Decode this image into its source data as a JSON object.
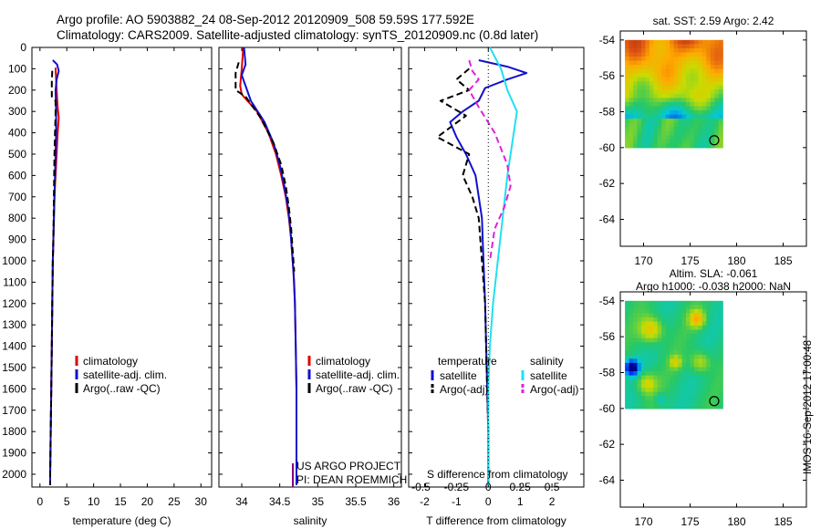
{
  "header": {
    "title_line1": "Argo profile: AO 5903882_24 08-Sep-2012 20120909_508 59.59S 177.592E",
    "title_line2": "Climatology: CARS2009. Satellite-adjusted climatology: synTS_20120909.nc (0.8d later)"
  },
  "colors": {
    "climatology": "#e00000",
    "satellite": "#1010d0",
    "argo": "#000000",
    "sal_satellite": "#20e0f0",
    "sal_argo": "#e020e0"
  },
  "depth_axis": {
    "ticks": [
      0,
      100,
      200,
      300,
      400,
      500,
      600,
      700,
      800,
      900,
      1000,
      1100,
      1200,
      1300,
      1400,
      1500,
      1600,
      1700,
      1800,
      1900,
      2000
    ],
    "range": [
      0,
      2060
    ]
  },
  "chart_data": [
    {
      "id": "temperature",
      "type": "line",
      "xlabel": "temperature (deg C)",
      "xlim": [
        -1.5,
        32
      ],
      "xticks": [
        0,
        5,
        10,
        15,
        20,
        25,
        30
      ],
      "legend": [
        "climatology",
        "satellite-adj. clim.",
        "Argo(..raw -QC)"
      ],
      "series": [
        {
          "name": "climatology",
          "color_key": "climatology",
          "dash": false,
          "points": [
            [
              2.9,
              95
            ],
            [
              3.0,
              150
            ],
            [
              3.1,
              200
            ],
            [
              3.3,
              280
            ],
            [
              3.5,
              330
            ],
            [
              3.3,
              400
            ],
            [
              3.1,
              500
            ],
            [
              2.9,
              600
            ],
            [
              2.7,
              700
            ],
            [
              2.6,
              800
            ],
            [
              2.5,
              900
            ],
            [
              2.4,
              1000
            ],
            [
              2.3,
              1200
            ],
            [
              2.2,
              1400
            ],
            [
              2.1,
              1600
            ],
            [
              2.0,
              1800
            ],
            [
              1.9,
              2000
            ],
            [
              1.9,
              2050
            ]
          ]
        },
        {
          "name": "satellite-adj. clim.",
          "color_key": "satellite",
          "dash": false,
          "points": [
            [
              2.4,
              60
            ],
            [
              3.2,
              80
            ],
            [
              3.5,
              110
            ],
            [
              3.1,
              150
            ],
            [
              2.9,
              200
            ],
            [
              3.0,
              300
            ],
            [
              3.0,
              400
            ],
            [
              2.9,
              500
            ],
            [
              2.8,
              600
            ],
            [
              2.7,
              700
            ],
            [
              2.6,
              800
            ],
            [
              2.5,
              900
            ],
            [
              2.4,
              1000
            ],
            [
              2.3,
              1200
            ],
            [
              2.2,
              1400
            ],
            [
              2.1,
              1600
            ],
            [
              2.0,
              1800
            ],
            [
              1.9,
              2000
            ],
            [
              1.9,
              2050
            ]
          ]
        },
        {
          "name": "Argo(..raw -QC)",
          "color_key": "argo",
          "dash": true,
          "points": [
            [
              2.3,
              110
            ],
            [
              2.2,
              160
            ],
            [
              2.2,
              230
            ],
            [
              2.9,
              250
            ],
            [
              2.9,
              320
            ],
            [
              2.8,
              400
            ],
            [
              2.7,
              500
            ],
            [
              2.6,
              700
            ],
            [
              2.5,
              900
            ],
            [
              2.4,
              1000
            ],
            [
              2.3,
              1200
            ],
            [
              2.2,
              1400
            ],
            [
              2.1,
              1600
            ],
            [
              2.0,
              1800
            ],
            [
              1.9,
              2000
            ],
            [
              1.9,
              2050
            ]
          ]
        }
      ]
    },
    {
      "id": "salinity",
      "type": "line",
      "xlabel": "salinity",
      "xlim": [
        33.7,
        36.1
      ],
      "xticks": [
        34,
        34.5,
        35,
        35.5,
        36
      ],
      "legend": [
        "climatology",
        "satellite-adj. clim.",
        "Argo(..raw -QC)"
      ],
      "annotation": [
        "US ARGO PROJECT",
        "PI: DEAN ROEMMICH"
      ],
      "series": [
        {
          "name": "climatology",
          "color_key": "climatology",
          "dash": false,
          "points": [
            [
              34.02,
              0
            ],
            [
              34.0,
              100
            ],
            [
              33.98,
              180
            ],
            [
              34.0,
              220
            ],
            [
              34.2,
              300
            ],
            [
              34.35,
              400
            ],
            [
              34.45,
              500
            ],
            [
              34.52,
              600
            ],
            [
              34.58,
              700
            ],
            [
              34.62,
              800
            ],
            [
              34.65,
              900
            ],
            [
              34.67,
              1000
            ],
            [
              34.69,
              1100
            ],
            [
              34.7,
              1200
            ],
            [
              34.71,
              1400
            ],
            [
              34.72,
              1600
            ],
            [
              34.72,
              1800
            ],
            [
              34.72,
              2000
            ],
            [
              34.72,
              2050
            ]
          ]
        },
        {
          "name": "satellite-adj. clim.",
          "color_key": "satellite",
          "dash": false,
          "points": [
            [
              34.03,
              0
            ],
            [
              34.05,
              80
            ],
            [
              34.0,
              130
            ],
            [
              34.05,
              180
            ],
            [
              34.12,
              250
            ],
            [
              34.3,
              350
            ],
            [
              34.42,
              450
            ],
            [
              34.5,
              550
            ],
            [
              34.56,
              650
            ],
            [
              34.61,
              750
            ],
            [
              34.64,
              850
            ],
            [
              34.66,
              950
            ],
            [
              34.68,
              1050
            ],
            [
              34.7,
              1200
            ],
            [
              34.71,
              1400
            ],
            [
              34.72,
              1600
            ],
            [
              34.72,
              1800
            ],
            [
              34.72,
              2000
            ],
            [
              34.72,
              2050
            ]
          ]
        },
        {
          "name": "Argo(..raw -QC)",
          "color_key": "argo",
          "dash": true,
          "points": [
            [
              33.96,
              70
            ],
            [
              33.92,
              120
            ],
            [
              33.92,
              200
            ],
            [
              34.05,
              230
            ],
            [
              34.25,
              330
            ],
            [
              34.42,
              450
            ],
            [
              34.52,
              550
            ],
            [
              34.58,
              650
            ],
            [
              34.62,
              750
            ],
            [
              34.65,
              850
            ],
            [
              34.67,
              950
            ],
            [
              34.69,
              1050
            ]
          ]
        }
      ]
    },
    {
      "id": "difference",
      "type": "line",
      "xlabel": "T difference from climatology",
      "xlim": [
        -2.5,
        3.0
      ],
      "xticks": [
        -2,
        -1,
        0,
        1,
        2
      ],
      "top_label": "S difference from climatology",
      "top_ticks": [
        "-0.5",
        "-0.25",
        "0",
        "0.25",
        "0.5"
      ],
      "legend_left": [
        "temperature",
        "satellite",
        "Argo(-adj)"
      ],
      "legend_right": [
        "salinity",
        "satellite",
        "Argo(-adj)"
      ],
      "series": [
        {
          "name": "T satellite",
          "color_key": "satellite",
          "dash": false,
          "points": [
            [
              -0.3,
              60
            ],
            [
              0.6,
              90
            ],
            [
              1.2,
              120
            ],
            [
              0.6,
              150
            ],
            [
              -0.1,
              190
            ],
            [
              -0.3,
              250
            ],
            [
              -0.8,
              300
            ],
            [
              -1.2,
              350
            ],
            [
              -1.0,
              420
            ],
            [
              -0.7,
              500
            ],
            [
              -0.4,
              600
            ],
            [
              -0.3,
              700
            ],
            [
              -0.2,
              800
            ],
            [
              -0.15,
              1000
            ],
            [
              -0.1,
              1200
            ],
            [
              -0.05,
              1500
            ],
            [
              0,
              1800
            ],
            [
              0,
              2050
            ]
          ]
        },
        {
          "name": "T Argo(-adj)",
          "color_key": "argo",
          "dash": true,
          "points": [
            [
              -0.6,
              100
            ],
            [
              -1.0,
              150
            ],
            [
              -0.6,
              200
            ],
            [
              -1.5,
              250
            ],
            [
              -0.7,
              320
            ],
            [
              -1.6,
              420
            ],
            [
              -0.6,
              500
            ],
            [
              -0.8,
              600
            ],
            [
              -0.5,
              700
            ],
            [
              -0.3,
              800
            ],
            [
              -0.2,
              1000
            ],
            [
              -0.1,
              1200
            ],
            [
              -0.05,
              1500
            ],
            [
              0,
              1800
            ],
            [
              0,
              2050
            ]
          ]
        },
        {
          "name": "S satellite",
          "color_key": "sal_satellite",
          "dash": false,
          "points": [
            [
              0.05,
              0
            ],
            [
              0.4,
              100
            ],
            [
              0.6,
              200
            ],
            [
              0.9,
              300
            ],
            [
              0.8,
              400
            ],
            [
              0.6,
              600
            ],
            [
              0.45,
              800
            ],
            [
              0.3,
              1000
            ],
            [
              0.15,
              1200
            ],
            [
              0.05,
              1400
            ],
            [
              0,
              1600
            ],
            [
              0,
              2050
            ]
          ]
        },
        {
          "name": "S Argo(-adj)",
          "color_key": "sal_argo",
          "dash": true,
          "points": [
            [
              -0.6,
              60
            ],
            [
              -0.5,
              110
            ],
            [
              -0.3,
              150
            ],
            [
              -0.6,
              200
            ],
            [
              -0.3,
              280
            ],
            [
              0.2,
              400
            ],
            [
              0.6,
              550
            ],
            [
              0.7,
              650
            ],
            [
              0.5,
              750
            ],
            [
              0.2,
              850
            ],
            [
              0.05,
              1000
            ]
          ]
        }
      ]
    },
    {
      "id": "sst_map",
      "type": "heatmap",
      "title": "sat. SST: 2.59 Argo: 2.42",
      "xticks": [
        170,
        175,
        180,
        185
      ],
      "yticks": [
        -54,
        -56,
        -58,
        -60,
        -62,
        -64
      ],
      "xlim": [
        167.5,
        187.5
      ],
      "ylim": [
        -65.5,
        -53.5
      ],
      "data_extent": {
        "x": [
          168,
          178.5
        ],
        "y": [
          -60,
          -54
        ]
      },
      "marker": {
        "lon": 177.592,
        "lat": -59.59
      }
    },
    {
      "id": "sla_map",
      "type": "heatmap",
      "title": "Altim. SLA: -0.061",
      "title_line2": "Argo h1000: -0.038 h2000: NaN",
      "xticks": [
        170,
        175,
        180,
        185
      ],
      "yticks": [
        -54,
        -56,
        -58,
        -60,
        -62,
        -64
      ],
      "xlim": [
        167.5,
        187.5
      ],
      "ylim": [
        -65.5,
        -53.5
      ],
      "data_extent": {
        "x": [
          168,
          178.5
        ],
        "y": [
          -60,
          -54
        ]
      },
      "marker": {
        "lon": 177.592,
        "lat": -59.59
      }
    }
  ],
  "footer": {
    "timestamp": "IMOS 16-Sep-2012 17:00:48"
  }
}
